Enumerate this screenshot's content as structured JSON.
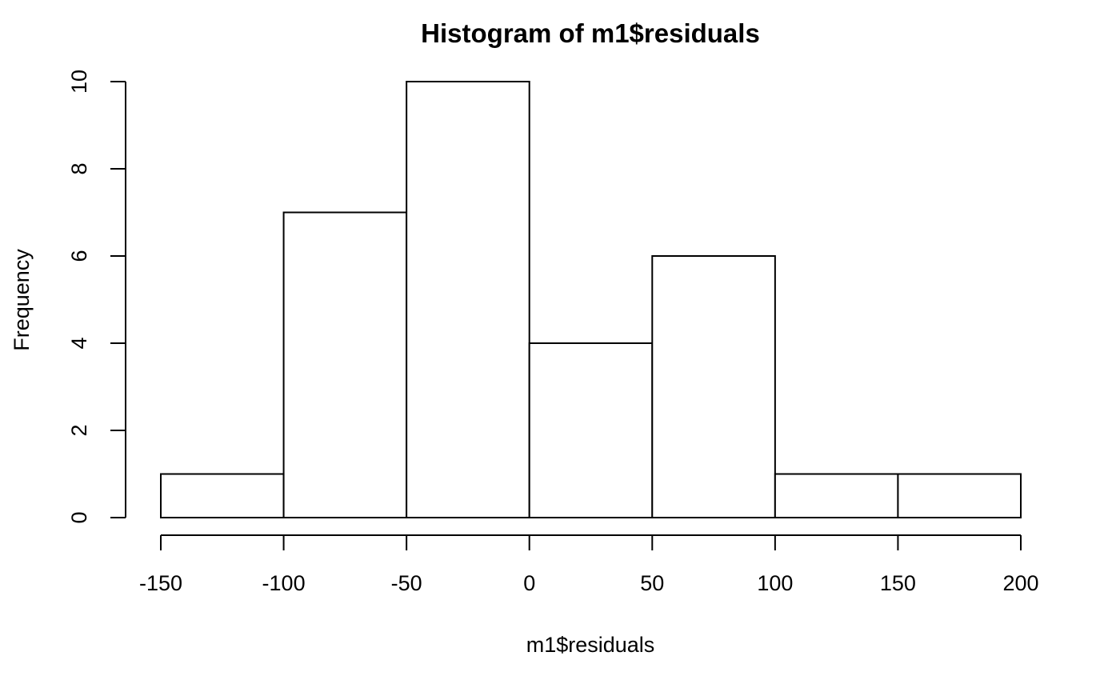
{
  "chart_data": {
    "type": "bar",
    "title": "Histogram of m1$residuals",
    "xlabel": "m1$residuals",
    "ylabel": "Frequency",
    "bins": [
      {
        "start": -150,
        "end": -100,
        "count": 1
      },
      {
        "start": -100,
        "end": -50,
        "count": 7
      },
      {
        "start": -50,
        "end": 0,
        "count": 10
      },
      {
        "start": 0,
        "end": 50,
        "count": 4
      },
      {
        "start": 50,
        "end": 100,
        "count": 6
      },
      {
        "start": 100,
        "end": 150,
        "count": 1
      },
      {
        "start": 150,
        "end": 200,
        "count": 1
      }
    ],
    "xlim": [
      -150,
      200
    ],
    "ylim": [
      0,
      10
    ],
    "x_ticks": [
      -150,
      -100,
      -50,
      0,
      50,
      100,
      150,
      200
    ],
    "x_tick_labels": [
      "-150",
      "-100",
      "-50",
      "0",
      "50",
      "100",
      "150",
      "200"
    ],
    "y_ticks": [
      0,
      2,
      4,
      6,
      8,
      10
    ],
    "y_tick_labels": [
      "0",
      "2",
      "4",
      "6",
      "8",
      "10"
    ],
    "grid": false,
    "legend": "none"
  }
}
